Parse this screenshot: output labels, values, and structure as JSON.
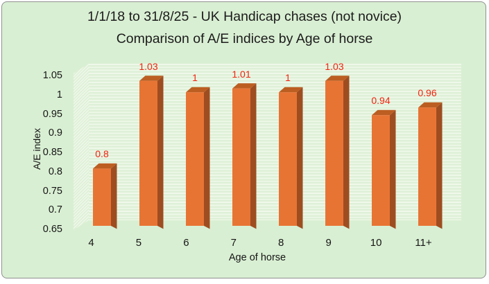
{
  "chart_data": {
    "type": "bar",
    "style": "3d-bar",
    "title_line1": "1/1/18 to 31/8/25 - UK Handicap chases (not novice)",
    "title_line2": "Comparison of A/E indices by Age of horse",
    "categories": [
      "4",
      "5",
      "6",
      "7",
      "8",
      "9",
      "10",
      "11+"
    ],
    "values": [
      0.8,
      1.03,
      1,
      1.01,
      1,
      1.03,
      0.94,
      0.96
    ],
    "data_labels": [
      "0.8",
      "1.03",
      "1",
      "1.01",
      "1",
      "1.03",
      "0.94",
      "0.96"
    ],
    "xlabel": "Age of horse",
    "ylabel": "A/E index",
    "y_ticks": [
      "1.05",
      "1",
      "0.95",
      "0.9",
      "0.85",
      "0.8",
      "0.75",
      "0.7",
      "0.65"
    ],
    "ylim": [
      0.65,
      1.05
    ],
    "legend": "none",
    "grid": "fine horizontal stripe pattern on back wall, diagonal on side wall",
    "colors": {
      "background": "#d9efd3",
      "border": "#8f8f8f",
      "text": "#1b1b1b",
      "bar_front": "#e87434",
      "bar_top": "#bc5e22",
      "bar_side": "#9e4d20",
      "data_label_red": "#f2220f"
    }
  }
}
